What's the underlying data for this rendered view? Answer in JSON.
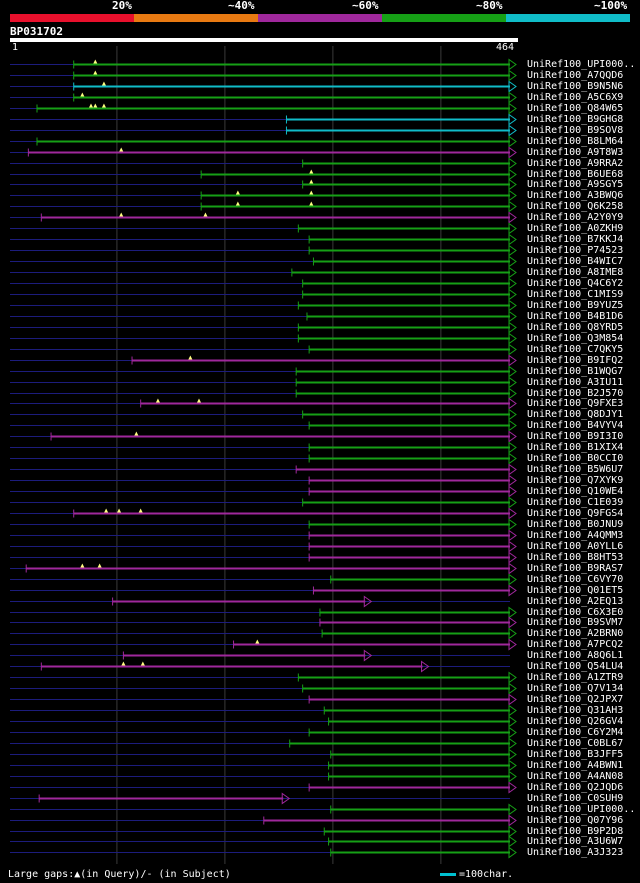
{
  "legend": {
    "segments": [
      {
        "label": "20%",
        "color": "#e8102c"
      },
      {
        "label": "~40%",
        "color": "#e87a12"
      },
      {
        "label": "~60%",
        "color": "#a0289c"
      },
      {
        "label": "~80%",
        "color": "#16a016"
      },
      {
        "label": "~100%",
        "color": "#10bcc8"
      }
    ]
  },
  "query": {
    "name": "BP031702",
    "start": "1",
    "end": "464",
    "length": 464
  },
  "footer": {
    "gaps_text": "Large gaps:▲(in Query)/- (in Subject)",
    "scale_text": "=100char."
  },
  "colors": {
    "green": "#16a016",
    "purple": "#a0289c",
    "cyan": "#10bcc8",
    "dashed": "#1c1c7c",
    "gap": "#ffff80"
  },
  "hits": [
    {
      "label": "UniRef100_UPI000..",
      "start": 60,
      "end": 464,
      "color": "green",
      "gaps": [
        80
      ]
    },
    {
      "label": "UniRef100_A7QQD6",
      "start": 60,
      "end": 464,
      "color": "green",
      "gaps": [
        80
      ]
    },
    {
      "label": "UniRef100_B9N5N6",
      "start": 60,
      "end": 464,
      "color": "cyan",
      "gaps": [
        88
      ]
    },
    {
      "label": "UniRef100_A5C6X9",
      "start": 60,
      "end": 464,
      "color": "green",
      "gaps": [
        68
      ]
    },
    {
      "label": "UniRef100_Q84W65",
      "start": 26,
      "end": 464,
      "color": "green",
      "gaps": [
        76,
        80,
        88
      ]
    },
    {
      "label": "UniRef100_B9GHG8",
      "start": 257,
      "end": 464,
      "color": "cyan",
      "gaps": []
    },
    {
      "label": "UniRef100_B9SOV8",
      "start": 257,
      "end": 464,
      "color": "cyan",
      "gaps": []
    },
    {
      "label": "UniRef100_B8LM64",
      "start": 26,
      "end": 464,
      "color": "green",
      "gaps": []
    },
    {
      "label": "UniRef100_A9T8W3",
      "start": 18,
      "end": 464,
      "color": "purple",
      "gaps": [
        104
      ]
    },
    {
      "label": "UniRef100_A9RRA2",
      "start": 272,
      "end": 464,
      "color": "green",
      "gaps": []
    },
    {
      "label": "UniRef100_B6UE68",
      "start": 178,
      "end": 464,
      "color": "green",
      "gaps": [
        280
      ]
    },
    {
      "label": "UniRef100_A9SGY5",
      "start": 272,
      "end": 464,
      "color": "green",
      "gaps": [
        280
      ]
    },
    {
      "label": "UniRef100_A3BWQ6",
      "start": 178,
      "end": 464,
      "color": "green",
      "gaps": [
        212,
        280
      ]
    },
    {
      "label": "UniRef100_Q6K258",
      "start": 178,
      "end": 464,
      "color": "green",
      "gaps": [
        212,
        280
      ]
    },
    {
      "label": "UniRef100_A2Y0Y9",
      "start": 30,
      "end": 464,
      "color": "purple",
      "gaps": [
        104,
        182
      ]
    },
    {
      "label": "UniRef100_A0ZKH9",
      "start": 268,
      "end": 464,
      "color": "green",
      "gaps": []
    },
    {
      "label": "UniRef100_B7KKJ4",
      "start": 278,
      "end": 464,
      "color": "green",
      "gaps": []
    },
    {
      "label": "UniRef100_P74523",
      "start": 278,
      "end": 464,
      "color": "green",
      "gaps": []
    },
    {
      "label": "UniRef100_B4WIC7",
      "start": 282,
      "end": 464,
      "color": "green",
      "gaps": []
    },
    {
      "label": "UniRef100_A8IME8",
      "start": 262,
      "end": 464,
      "color": "green",
      "gaps": []
    },
    {
      "label": "UniRef100_Q4C6Y2",
      "start": 272,
      "end": 464,
      "color": "green",
      "gaps": []
    },
    {
      "label": "UniRef100_C1MIS9",
      "start": 272,
      "end": 464,
      "color": "green",
      "gaps": []
    },
    {
      "label": "UniRef100_B9YUZ5",
      "start": 268,
      "end": 464,
      "color": "green",
      "gaps": []
    },
    {
      "label": "UniRef100_B4B1D6",
      "start": 276,
      "end": 464,
      "color": "green",
      "gaps": []
    },
    {
      "label": "UniRef100_Q8YRD5",
      "start": 268,
      "end": 464,
      "color": "green",
      "gaps": []
    },
    {
      "label": "UniRef100_Q3M854",
      "start": 268,
      "end": 464,
      "color": "green",
      "gaps": []
    },
    {
      "label": "UniRef100_C7QKY5",
      "start": 278,
      "end": 464,
      "color": "green",
      "gaps": []
    },
    {
      "label": "UniRef100_B9IFQ2",
      "start": 114,
      "end": 464,
      "color": "purple",
      "gaps": [
        168
      ]
    },
    {
      "label": "UniRef100_B1WQG7",
      "start": 266,
      "end": 464,
      "color": "green",
      "gaps": []
    },
    {
      "label": "UniRef100_A3IU11",
      "start": 266,
      "end": 464,
      "color": "green",
      "gaps": []
    },
    {
      "label": "UniRef100_B2J570",
      "start": 266,
      "end": 464,
      "color": "green",
      "gaps": []
    },
    {
      "label": "UniRef100_Q9FXE3",
      "start": 122,
      "end": 464,
      "color": "purple",
      "gaps": [
        138,
        176
      ]
    },
    {
      "label": "UniRef100_Q8DJY1",
      "start": 272,
      "end": 464,
      "color": "green",
      "gaps": []
    },
    {
      "label": "UniRef100_B4VYV4",
      "start": 278,
      "end": 464,
      "color": "green",
      "gaps": []
    },
    {
      "label": "UniRef100_B9I3I0",
      "start": 39,
      "end": 464,
      "color": "purple",
      "gaps": [
        118
      ]
    },
    {
      "label": "UniRef100_B1XIX4",
      "start": 278,
      "end": 464,
      "color": "green",
      "gaps": []
    },
    {
      "label": "UniRef100_B0CCI0",
      "start": 278,
      "end": 464,
      "color": "green",
      "gaps": []
    },
    {
      "label": "UniRef100_B5W6U7",
      "start": 266,
      "end": 464,
      "color": "purple",
      "gaps": []
    },
    {
      "label": "UniRef100_Q7XYK9",
      "start": 278,
      "end": 464,
      "color": "purple",
      "gaps": []
    },
    {
      "label": "UniRef100_Q10WE4",
      "start": 278,
      "end": 464,
      "color": "purple",
      "gaps": []
    },
    {
      "label": "UniRef100_C1E039",
      "start": 272,
      "end": 464,
      "color": "green",
      "gaps": []
    },
    {
      "label": "UniRef100_Q9FGS4",
      "start": 60,
      "end": 464,
      "color": "purple",
      "gaps": [
        90,
        102,
        122
      ]
    },
    {
      "label": "UniRef100_B0JNU9",
      "start": 278,
      "end": 464,
      "color": "green",
      "gaps": []
    },
    {
      "label": "UniRef100_A4QMM3",
      "start": 278,
      "end": 464,
      "color": "purple",
      "gaps": []
    },
    {
      "label": "UniRef100_A0YLL6",
      "start": 278,
      "end": 464,
      "color": "purple",
      "gaps": []
    },
    {
      "label": "UniRef100_B8HT53",
      "start": 278,
      "end": 464,
      "color": "purple",
      "gaps": []
    },
    {
      "label": "UniRef100_B9RAS7",
      "start": 16,
      "end": 464,
      "color": "purple",
      "gaps": [
        68,
        84
      ]
    },
    {
      "label": "UniRef100_C6VY70",
      "start": 298,
      "end": 464,
      "color": "green",
      "gaps": []
    },
    {
      "label": "UniRef100_Q01ET5",
      "start": 282,
      "end": 464,
      "color": "purple",
      "gaps": []
    },
    {
      "label": "UniRef100_A2EQ13",
      "start": 96,
      "end": 330,
      "color": "purple",
      "gaps": []
    },
    {
      "label": "UniRef100_C6X3E0",
      "start": 288,
      "end": 464,
      "color": "green",
      "gaps": []
    },
    {
      "label": "UniRef100_B9SVM7",
      "start": 288,
      "end": 464,
      "color": "purple",
      "gaps": []
    },
    {
      "label": "UniRef100_A2BRN0",
      "start": 290,
      "end": 464,
      "color": "green",
      "gaps": []
    },
    {
      "label": "UniRef100_A7PCQ2",
      "start": 208,
      "end": 464,
      "color": "purple",
      "gaps": [
        230
      ]
    },
    {
      "label": "UniRef100_A8Q6L1",
      "start": 106,
      "end": 330,
      "color": "purple",
      "gaps": []
    },
    {
      "label": "UniRef100_Q54LU4",
      "start": 30,
      "end": 383,
      "color": "purple",
      "gaps": [
        106,
        124
      ]
    },
    {
      "label": "UniRef100_A1ZTR9",
      "start": 268,
      "end": 464,
      "color": "green",
      "gaps": []
    },
    {
      "label": "UniRef100_Q7V134",
      "start": 272,
      "end": 464,
      "color": "green",
      "gaps": []
    },
    {
      "label": "UniRef100_Q2JPX7",
      "start": 278,
      "end": 464,
      "color": "purple",
      "gaps": []
    },
    {
      "label": "UniRef100_Q31AH3",
      "start": 292,
      "end": 464,
      "color": "green",
      "gaps": []
    },
    {
      "label": "UniRef100_Q26GV4",
      "start": 296,
      "end": 464,
      "color": "green",
      "gaps": []
    },
    {
      "label": "UniRef100_C6Y2M4",
      "start": 278,
      "end": 464,
      "color": "green",
      "gaps": []
    },
    {
      "label": "UniRef100_C0BL67",
      "start": 260,
      "end": 464,
      "color": "green",
      "gaps": []
    },
    {
      "label": "UniRef100_B3JFF5",
      "start": 298,
      "end": 464,
      "color": "green",
      "gaps": []
    },
    {
      "label": "UniRef100_A4BWN1",
      "start": 296,
      "end": 464,
      "color": "green",
      "gaps": []
    },
    {
      "label": "UniRef100_A4AN08",
      "start": 296,
      "end": 464,
      "color": "green",
      "gaps": []
    },
    {
      "label": "UniRef100_Q2JQD6",
      "start": 278,
      "end": 464,
      "color": "purple",
      "gaps": []
    },
    {
      "label": "UniRef100_C0SUH9",
      "start": 28,
      "end": 254,
      "color": "purple",
      "gaps": []
    },
    {
      "label": "UniRef100_UPI000..",
      "start": 298,
      "end": 464,
      "color": "green",
      "gaps": []
    },
    {
      "label": "UniRef100_Q07Y96",
      "start": 236,
      "end": 464,
      "color": "purple",
      "gaps": []
    },
    {
      "label": "UniRef100_B9P2D8",
      "start": 292,
      "end": 464,
      "color": "green",
      "gaps": []
    },
    {
      "label": "UniRef100_A3U6W7",
      "start": 296,
      "end": 464,
      "color": "green",
      "gaps": []
    },
    {
      "label": "UniRef100_A3J323",
      "start": 298,
      "end": 464,
      "color": "green",
      "gaps": []
    }
  ]
}
